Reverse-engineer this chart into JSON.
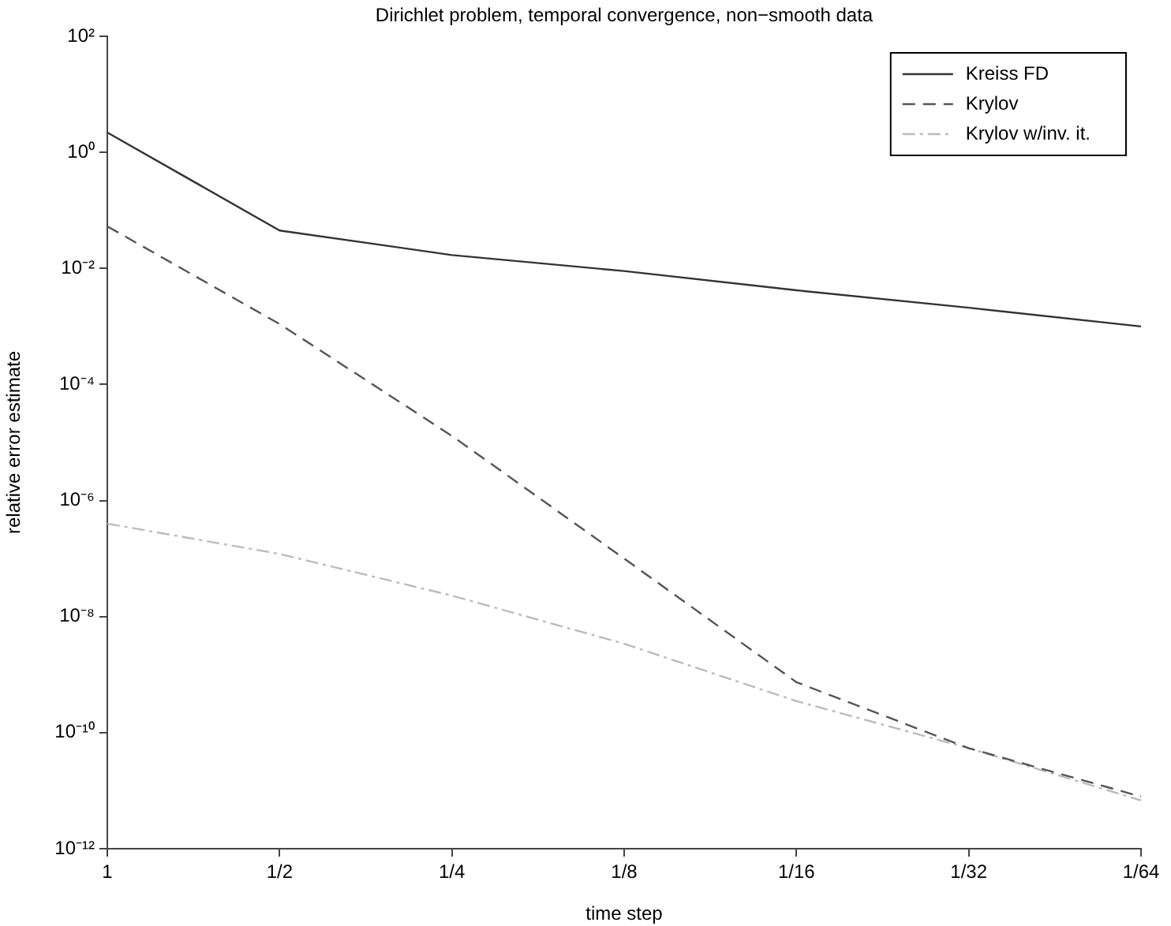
{
  "chart_data": {
    "type": "line",
    "title": "Dirichlet problem, temporal convergence, non−smooth data",
    "xlabel": "time step",
    "ylabel": "relative error estimate",
    "categories": [
      "1",
      "1/2",
      "1/4",
      "1/8",
      "1/16",
      "1/32",
      "1/64"
    ],
    "log": "y",
    "ylim": [
      1e-12,
      100
    ],
    "yticks": [
      {
        "value": 1e-12,
        "label": "10⁻¹²"
      },
      {
        "value": 1e-10,
        "label": "10⁻¹⁰"
      },
      {
        "value": 1e-08,
        "label": "10⁻⁸"
      },
      {
        "value": 1e-06,
        "label": "10⁻⁶"
      },
      {
        "value": 0.0001,
        "label": "10⁻⁴"
      },
      {
        "value": 0.01,
        "label": "10⁻²"
      },
      {
        "value": 1,
        "label": "10⁰"
      },
      {
        "value": 100,
        "label": "10²"
      }
    ],
    "grid": false,
    "legend": "top right",
    "marker": "none",
    "series": [
      {
        "name": "Kreiss FD",
        "color": "#333333",
        "line_style": "solid",
        "values": [
          2.2,
          0.045,
          0.017,
          0.009,
          0.0042,
          0.0021,
          0.001
        ]
      },
      {
        "name": "Krylov",
        "color": "#555555",
        "line_style": "dashed",
        "values": [
          0.053,
          0.0011,
          1.3e-05,
          1e-07,
          7.4e-10,
          5.4e-11,
          7.9e-12
        ]
      },
      {
        "name": "Krylov w/inv. it.",
        "color": "#bbbbbb",
        "line_style": "dotted",
        "values": [
          4e-07,
          1.2e-07,
          2.3e-08,
          3.4e-09,
          3.5e-10,
          5.4e-11,
          6.8e-12
        ]
      }
    ]
  }
}
